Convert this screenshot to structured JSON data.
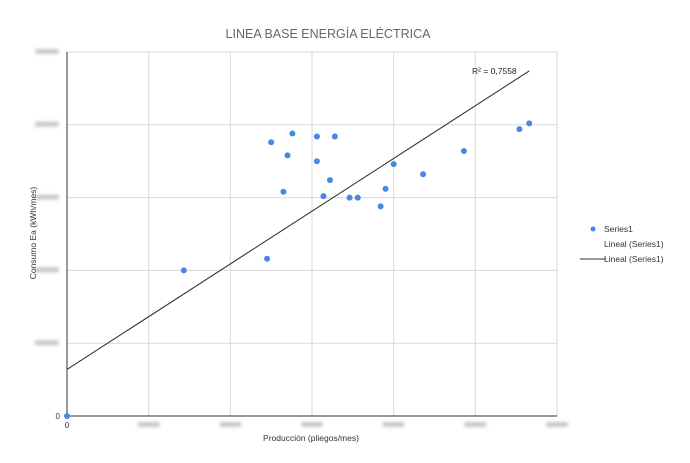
{
  "chart_data": {
    "type": "scatter",
    "title": "LINEA BASE ENERGÍA ELÉCTRICA",
    "xlabel": "Producción (pliegos/mes)",
    "ylabel": "Consumo Ea (kWh/mes)",
    "xlim": [
      0,
      30000
    ],
    "ylim": [
      0,
      25000
    ],
    "x_ticks": [
      0,
      5000,
      10000,
      15000,
      20000,
      25000,
      30000
    ],
    "y_ticks": [
      0,
      5000,
      10000,
      15000,
      20000,
      25000
    ],
    "x_tick_labels": [
      "0",
      "",
      "",
      "",
      "",
      "",
      ""
    ],
    "y_tick_labels": [
      "0",
      "",
      "",
      "",
      "",
      ""
    ],
    "grid": true,
    "series": [
      {
        "name": "Series1",
        "color": "#4a86e8",
        "points": [
          {
            "x": 0,
            "y": 0
          },
          {
            "x": 7150,
            "y": 10000
          },
          {
            "x": 12250,
            "y": 10800
          },
          {
            "x": 12500,
            "y": 18800
          },
          {
            "x": 13250,
            "y": 15400
          },
          {
            "x": 13500,
            "y": 17900
          },
          {
            "x": 13800,
            "y": 19400
          },
          {
            "x": 15300,
            "y": 19200
          },
          {
            "x": 15300,
            "y": 17500
          },
          {
            "x": 15700,
            "y": 15100
          },
          {
            "x": 16100,
            "y": 16200
          },
          {
            "x": 16400,
            "y": 19200
          },
          {
            "x": 17300,
            "y": 15000
          },
          {
            "x": 17800,
            "y": 15000
          },
          {
            "x": 19200,
            "y": 14400
          },
          {
            "x": 19500,
            "y": 15600
          },
          {
            "x": 20000,
            "y": 17300
          },
          {
            "x": 21800,
            "y": 16600
          },
          {
            "x": 24300,
            "y": 18200
          },
          {
            "x": 27700,
            "y": 19700
          },
          {
            "x": 28300,
            "y": 20100
          }
        ]
      }
    ],
    "trendline": {
      "name": "Lineal (Series1)",
      "type": "linear",
      "color": "#333333",
      "x_range": [
        0,
        28300
      ],
      "y_range": [
        3200,
        23700
      ],
      "r_squared_label": "R² = 0,7558"
    },
    "legend": {
      "position": "right",
      "entries": [
        {
          "label": "Series1",
          "marker": "dot"
        },
        {
          "label": "Lineal (Series1)",
          "marker": "none"
        },
        {
          "label": "Lineal (Series1)",
          "marker": "line"
        }
      ]
    }
  }
}
